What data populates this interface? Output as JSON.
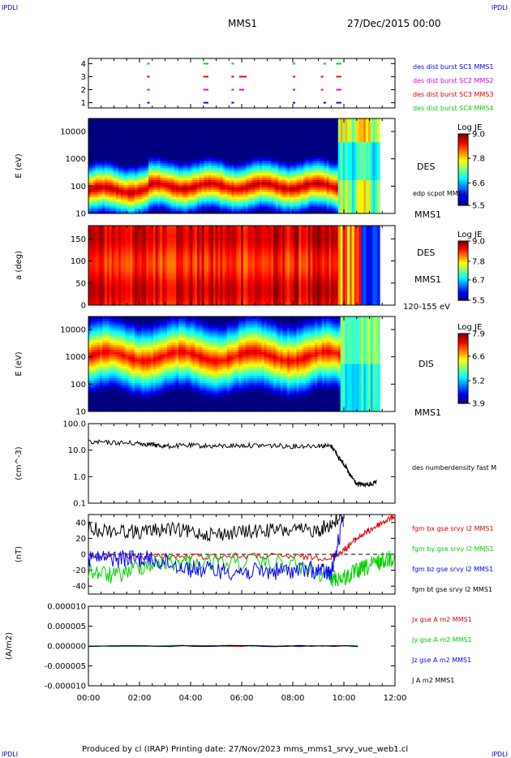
{
  "header": {
    "corner_tl": "IPDLI",
    "corner_tr": "IPDLI",
    "corner_bl": "IPDLI",
    "corner_br": "IPDLI",
    "spacecraft": "MMS1",
    "date": "27/Dec/2015 00:00"
  },
  "footer": {
    "text": "Produced by cl (IRAP)   Printing date: 27/Nov/2023   mms_mms1_srvy_vue_web1.cl"
  },
  "colors": {
    "c1": "#0000ff",
    "c2": "#e000e0",
    "c3": "#e00000",
    "c4": "#00d000",
    "black": "#000000"
  },
  "chart_data": [
    {
      "type": "scatter",
      "panel": "burst-availability",
      "yticks": [
        "1",
        "2",
        "3",
        "4"
      ],
      "series": [
        {
          "name": "des dist burst SC1 MMS1",
          "y": 1,
          "color": "#0000ff",
          "x": [
            2.3,
            4.5,
            4.6,
            5.6,
            8.0,
            9.2,
            9.7,
            9.8
          ]
        },
        {
          "name": "des dist burst SC2 MMS2",
          "y": 2,
          "color": "#e000e0",
          "x": [
            2.3,
            4.5,
            4.6,
            5.6,
            5.9,
            6.0,
            8.0,
            9.1,
            9.7,
            9.8
          ]
        },
        {
          "name": "des dist burst SC3 MMS3",
          "y": 3,
          "color": "#e00000",
          "x": [
            2.3,
            4.5,
            4.6,
            5.6,
            5.9,
            6.0,
            6.1,
            8.0,
            9.1,
            9.7,
            9.8
          ]
        },
        {
          "name": "des dist burst SC4 MMS4",
          "y": 4,
          "color": "#00d000",
          "x": [
            2.3,
            4.5,
            4.6,
            5.6,
            8.0,
            9.2,
            9.7,
            9.8
          ]
        }
      ]
    },
    {
      "type": "heatmap",
      "panel": "des-energy-spectrogram",
      "ylabel": "E (eV)",
      "yscale": "log",
      "ylim": [
        10,
        30000
      ],
      "yticks": [
        "10",
        "100",
        "1000",
        "10000"
      ],
      "label": "DES",
      "label2": "edp scpot MMS1",
      "label3": "MMS1",
      "colorbar": {
        "title": "Log JE",
        "ticks": [
          "9.0",
          "7.8",
          "6.6",
          "5.5"
        ],
        "range": [
          5.5,
          9.0
        ]
      }
    },
    {
      "type": "heatmap",
      "panel": "des-pitch-angle",
      "ylabel": "a (deg)",
      "ylim": [
        0,
        180
      ],
      "yticks": [
        "0",
        "50",
        "100",
        "150"
      ],
      "label": "DES",
      "label2": "MMS1",
      "label3": "120-155 eV",
      "colorbar": {
        "title": "Log JE",
        "ticks": [
          "9.0",
          "7.8",
          "6.7",
          "5.5"
        ],
        "range": [
          5.5,
          9.0
        ]
      }
    },
    {
      "type": "heatmap",
      "panel": "dis-energy-spectrogram",
      "ylabel": "E (eV)",
      "yscale": "log",
      "ylim": [
        10,
        30000
      ],
      "yticks": [
        "10",
        "100",
        "1000",
        "10000"
      ],
      "label": "DIS",
      "label2": "MMS1",
      "colorbar": {
        "title": "Log JE",
        "ticks": [
          "7.9",
          "6.6",
          "5.2",
          "3.9"
        ],
        "range": [
          3.9,
          7.9
        ]
      }
    },
    {
      "type": "line",
      "panel": "number-density",
      "ylabel": "(cm^-3)",
      "yscale": "log",
      "ylim": [
        0.1,
        100
      ],
      "yticks": [
        "0.1",
        "1.0",
        "10.0",
        "100.0"
      ],
      "series": [
        {
          "name": "des numberdensity fast M",
          "color": "#000000",
          "x": [
            0,
            1,
            2,
            2.5,
            3,
            4,
            5,
            6,
            7,
            8,
            9,
            9.5,
            9.8,
            10.0,
            10.2,
            10.5,
            11.0,
            11.3
          ],
          "y": [
            20,
            19,
            18,
            16,
            14,
            15,
            14,
            15,
            15,
            14,
            15,
            14,
            5,
            3,
            1.2,
            0.5,
            0.5,
            0.6
          ]
        }
      ]
    },
    {
      "type": "line",
      "panel": "magnetic-field",
      "ylabel": "(nT)",
      "ylim": [
        -50,
        50
      ],
      "yticks": [
        "-40",
        "-20",
        "0",
        "20",
        "40"
      ],
      "series": [
        {
          "name": "fgm bx gse srvy l2 MMS1",
          "color": "#e00000",
          "x": [
            0,
            2,
            4,
            6,
            8,
            9.5,
            10,
            10.5,
            11,
            11.5,
            12
          ],
          "y": [
            -2,
            -3,
            -3,
            -2,
            -3,
            -4,
            5,
            20,
            30,
            40,
            48
          ]
        },
        {
          "name": "fgm by gse srvy l2 MMS1",
          "color": "#00d000",
          "x": [
            0,
            1,
            2,
            3,
            4,
            6,
            8,
            9.5,
            10,
            10.5,
            11,
            11.5,
            12
          ],
          "y": [
            -20,
            -28,
            -15,
            -10,
            -10,
            -10,
            -12,
            -30,
            -30,
            -22,
            -15,
            -8,
            -2
          ]
        },
        {
          "name": "fgm bz gse srvy l2 MMS1",
          "color": "#0000ff",
          "x": [
            0,
            1,
            2,
            3,
            4,
            5,
            6,
            7,
            8,
            9,
            9.5,
            10
          ],
          "y": [
            -5,
            -5,
            -5,
            -10,
            -18,
            -20,
            -22,
            -22,
            -20,
            -20,
            -25,
            48
          ]
        },
        {
          "name": "fgm bt gse srvy l2 MMS1",
          "color": "#000000",
          "x": [
            0,
            1,
            2,
            3,
            4,
            5,
            6,
            7,
            8,
            9,
            9.5,
            10
          ],
          "y": [
            32,
            30,
            28,
            32,
            28,
            25,
            28,
            30,
            30,
            30,
            38,
            48
          ]
        }
      ]
    },
    {
      "type": "line",
      "panel": "current-density",
      "ylabel": "(A/m2)",
      "ylim": [
        -1e-05,
        1e-05
      ],
      "yticks": [
        "0.000010",
        "0.000005",
        "0.000000",
        "-0.000005",
        "-0.000010"
      ],
      "series": [
        {
          "name": "Jx gse A m2 MMS1",
          "color": "#e00000",
          "x": [
            0,
            11
          ],
          "y": [
            0,
            0
          ]
        },
        {
          "name": "Jy gse A m2 MMS1",
          "color": "#00d000",
          "x": [
            0,
            11
          ],
          "y": [
            0,
            0
          ]
        },
        {
          "name": "Jz gse A m2 MMS1",
          "color": "#0000ff",
          "x": [
            0,
            11
          ],
          "y": [
            0,
            0
          ]
        },
        {
          "name": "J A m2 MMS1",
          "color": "#000000",
          "x": [
            0,
            11
          ],
          "y": [
            0,
            0
          ]
        }
      ]
    }
  ],
  "time_axis": {
    "xlim": [
      0,
      12
    ],
    "ticks": [
      "00:00",
      "02:00",
      "04:00",
      "06:00",
      "08:00",
      "10:00",
      "12:00"
    ]
  }
}
